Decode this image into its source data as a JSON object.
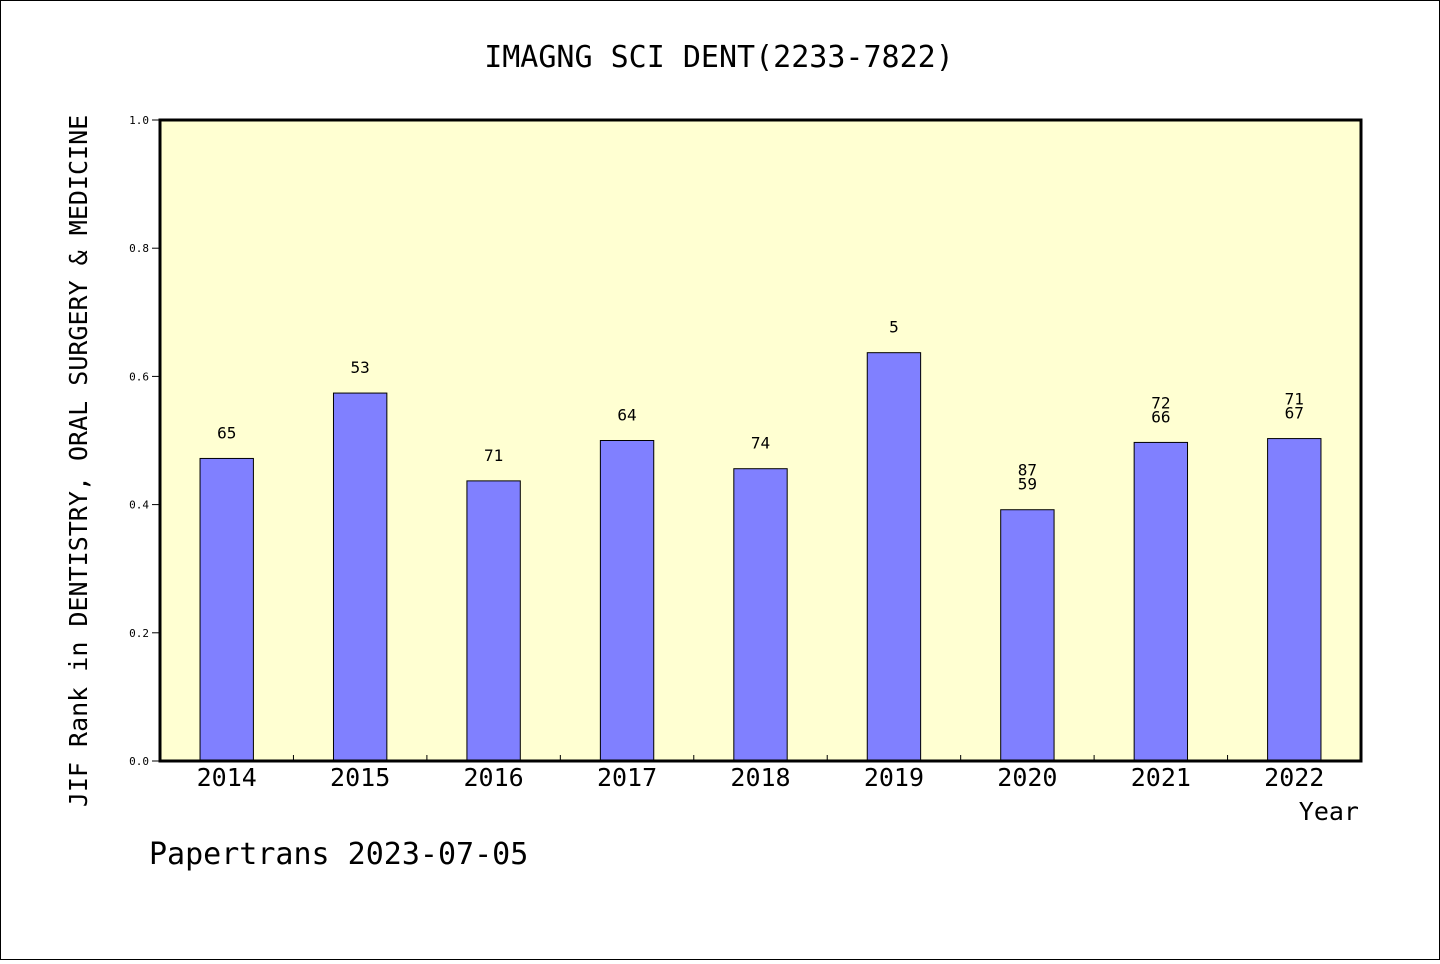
{
  "chart_data": {
    "type": "bar",
    "title": "IMAGNG SCI DENT(2233-7822)",
    "xlabel": "Year",
    "ylabel": "JIF Rank in DENTISTRY, ORAL SURGERY & MEDICINE",
    "ylim": [
      0.0,
      1.0
    ],
    "yticks": [
      "0.0",
      "0.2",
      "0.4",
      "0.6",
      "0.8",
      "1.0"
    ],
    "categories": [
      "2014",
      "2015",
      "2016",
      "2017",
      "2018",
      "2019",
      "2020",
      "2021",
      "2022"
    ],
    "values": [
      0.472,
      0.574,
      0.437,
      0.5,
      0.456,
      0.637,
      0.392,
      0.497,
      0.503
    ],
    "labels": [
      [
        "65"
      ],
      [
        "53"
      ],
      [
        "71"
      ],
      [
        "64"
      ],
      [
        "74"
      ],
      [
        "5"
      ],
      [
        "87",
        "59"
      ],
      [
        "72",
        "66"
      ],
      [
        "71",
        "67"
      ]
    ],
    "grid": false,
    "bar_color": "#8080ff",
    "plot_background": "#ffffd2"
  },
  "footer": "Papertrans 2023-07-05"
}
